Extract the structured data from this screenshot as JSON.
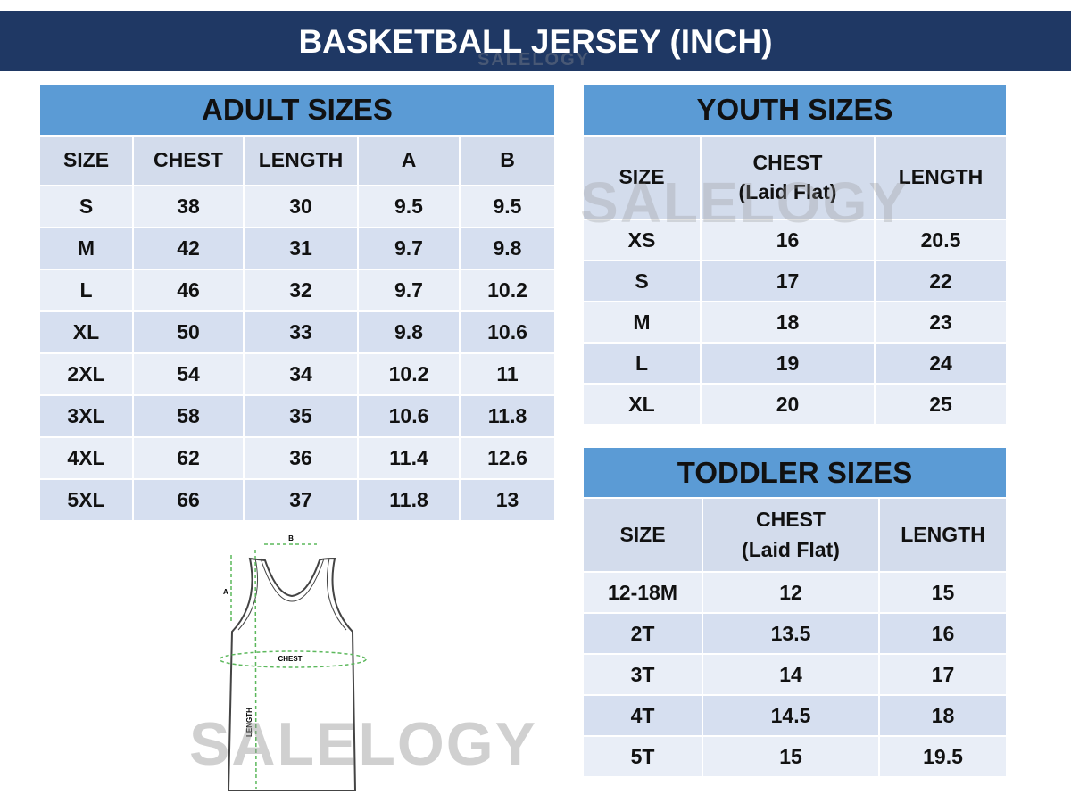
{
  "title": "BASKETBALL JERSEY (INCH)",
  "watermark": "SALELOGY",
  "adult": {
    "title": "ADULT SIZES",
    "headers": [
      "SIZE",
      "CHEST",
      "LENGTH",
      "A",
      "B"
    ],
    "rows": [
      [
        "S",
        "38",
        "30",
        "9.5",
        "9.5"
      ],
      [
        "M",
        "42",
        "31",
        "9.7",
        "9.8"
      ],
      [
        "L",
        "46",
        "32",
        "9.7",
        "10.2"
      ],
      [
        "XL",
        "50",
        "33",
        "9.8",
        "10.6"
      ],
      [
        "2XL",
        "54",
        "34",
        "10.2",
        "11"
      ],
      [
        "3XL",
        "58",
        "35",
        "10.6",
        "11.8"
      ],
      [
        "4XL",
        "62",
        "36",
        "11.4",
        "12.6"
      ],
      [
        "5XL",
        "66",
        "37",
        "11.8",
        "13"
      ]
    ]
  },
  "youth": {
    "title": "YOUTH SIZES",
    "headers": [
      "SIZE",
      "CHEST\n(Laid Flat)",
      "LENGTH"
    ],
    "rows": [
      [
        "XS",
        "16",
        "20.5"
      ],
      [
        "S",
        "17",
        "22"
      ],
      [
        "M",
        "18",
        "23"
      ],
      [
        "L",
        "19",
        "24"
      ],
      [
        "XL",
        "20",
        "25"
      ]
    ]
  },
  "toddler": {
    "title": "TODDLER SIZES",
    "headers": [
      "SIZE",
      "CHEST\n(Laid Flat)",
      "LENGTH"
    ],
    "rows": [
      [
        "12-18M",
        "12",
        "15"
      ],
      [
        "2T",
        "13.5",
        "16"
      ],
      [
        "3T",
        "14",
        "17"
      ],
      [
        "4T",
        "14.5",
        "18"
      ],
      [
        "5T",
        "15",
        "19.5"
      ]
    ]
  },
  "diagram": {
    "labels": {
      "a": "A",
      "b": "B",
      "chest": "CHEST",
      "length": "LENGTH"
    }
  },
  "colors": {
    "banner": "#1f3864",
    "table_title": "#5b9bd5",
    "header": "#d3dcec",
    "row_light": "#e9eef7",
    "row_dark": "#d6dff0",
    "measure_line": "#5cb85c"
  }
}
